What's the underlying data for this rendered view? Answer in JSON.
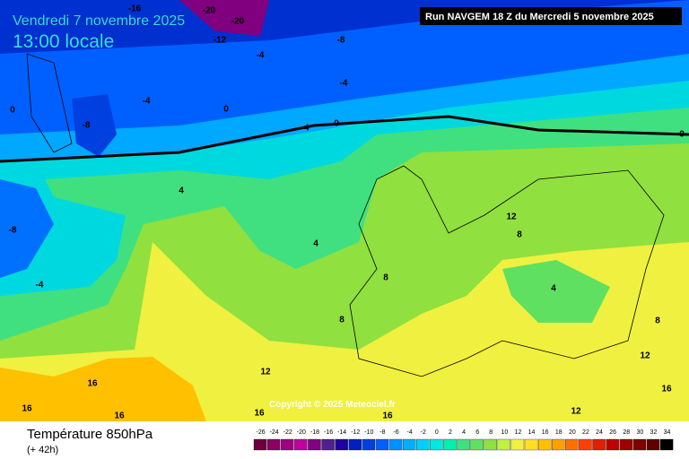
{
  "header": {
    "date": "Vendredi 7 novembre 2025",
    "time": "13:00 locale",
    "run": "Run NAVGEM 18 Z du Mercredi 5 novembre 2025"
  },
  "copyright": "Copyright © 2025 Meteociel.fr",
  "contour_labels": [
    -16,
    -20,
    -20,
    -12,
    -8,
    -4,
    -4,
    -4,
    0,
    -8,
    0,
    -4,
    0,
    0,
    4,
    12,
    -8,
    4,
    8,
    -4,
    8,
    4,
    8,
    8,
    12,
    12,
    16,
    16,
    16,
    16,
    16,
    16,
    12
  ],
  "legend": {
    "title": "Température 850hPa",
    "lead": "(+ 42h)",
    "ticks": [
      -26,
      -24,
      -22,
      -20,
      -18,
      -16,
      -14,
      -12,
      -10,
      -8,
      -6,
      -4,
      -2,
      0,
      2,
      4,
      6,
      8,
      10,
      12,
      14,
      16,
      18,
      20,
      22,
      24,
      26,
      28,
      30,
      32,
      34
    ],
    "colors": [
      "#6b0040",
      "#8b0060",
      "#a00080",
      "#c000a0",
      "#800080",
      "#502090",
      "#2000a0",
      "#0020c0",
      "#0040e0",
      "#0060ff",
      "#0090ff",
      "#00b0ff",
      "#00d0ff",
      "#00e8e0",
      "#00f0b0",
      "#40e080",
      "#60e060",
      "#90e040",
      "#c0f040",
      "#f0f040",
      "#ffe020",
      "#ffc000",
      "#ffa000",
      "#ff7000",
      "#ff4000",
      "#e02000",
      "#c00000",
      "#a00000",
      "#800000",
      "#600000",
      "#000000"
    ]
  }
}
